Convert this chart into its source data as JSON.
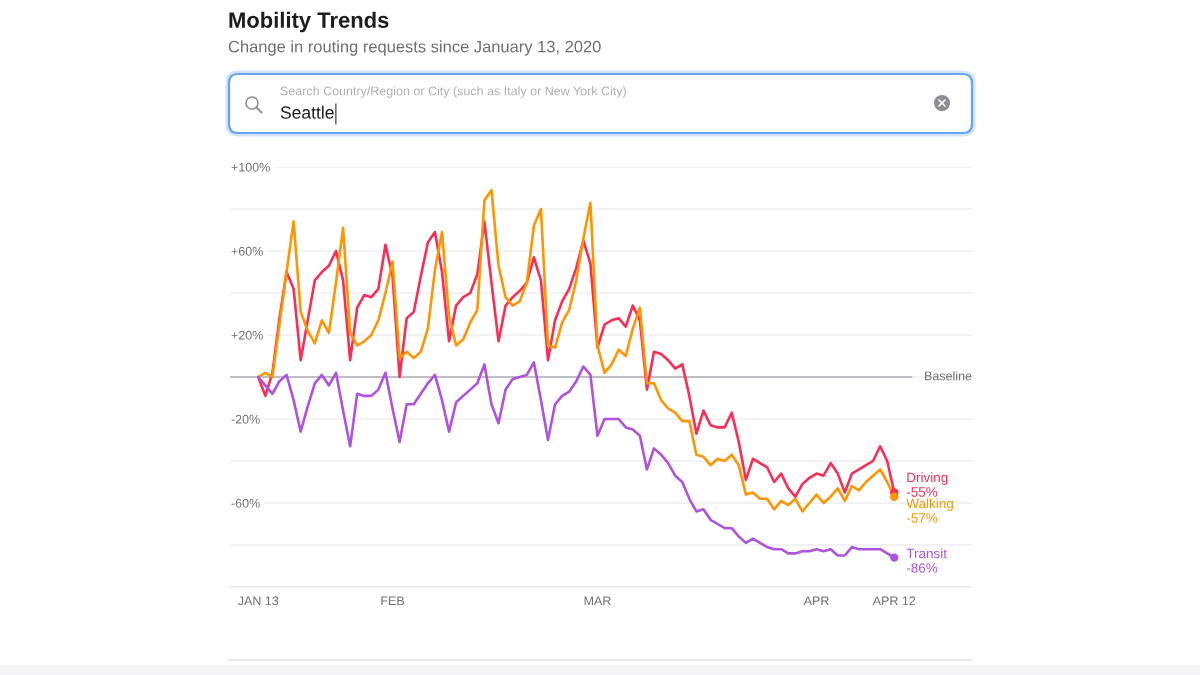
{
  "chart_data": {
    "type": "line",
    "title": "Mobility Trends",
    "subtitle": "Change in routing requests since January 13, 2020",
    "annotations": [
      "Search Country/Region or City (such as Italy or New York City)",
      "Seattle"
    ],
    "x": [
      "2020-01-13",
      "2020-01-14",
      "2020-01-15",
      "2020-01-16",
      "2020-01-17",
      "2020-01-18",
      "2020-01-19",
      "2020-01-20",
      "2020-01-21",
      "2020-01-22",
      "2020-01-23",
      "2020-01-24",
      "2020-01-25",
      "2020-01-26",
      "2020-01-27",
      "2020-01-28",
      "2020-01-29",
      "2020-01-30",
      "2020-01-31",
      "2020-02-01",
      "2020-02-02",
      "2020-02-03",
      "2020-02-04",
      "2020-02-05",
      "2020-02-06",
      "2020-02-07",
      "2020-02-08",
      "2020-02-09",
      "2020-02-10",
      "2020-02-11",
      "2020-02-12",
      "2020-02-13",
      "2020-02-14",
      "2020-02-15",
      "2020-02-16",
      "2020-02-17",
      "2020-02-18",
      "2020-02-19",
      "2020-02-20",
      "2020-02-21",
      "2020-02-22",
      "2020-02-23",
      "2020-02-24",
      "2020-02-25",
      "2020-02-26",
      "2020-02-27",
      "2020-02-28",
      "2020-02-29",
      "2020-03-01",
      "2020-03-02",
      "2020-03-03",
      "2020-03-04",
      "2020-03-05",
      "2020-03-06",
      "2020-03-07",
      "2020-03-08",
      "2020-03-09",
      "2020-03-10",
      "2020-03-11",
      "2020-03-12",
      "2020-03-13",
      "2020-03-14",
      "2020-03-15",
      "2020-03-16",
      "2020-03-17",
      "2020-03-18",
      "2020-03-19",
      "2020-03-20",
      "2020-03-21",
      "2020-03-22",
      "2020-03-23",
      "2020-03-24",
      "2020-03-25",
      "2020-03-26",
      "2020-03-27",
      "2020-03-28",
      "2020-03-29",
      "2020-03-30",
      "2020-03-31",
      "2020-04-01",
      "2020-04-02",
      "2020-04-03",
      "2020-04-04",
      "2020-04-05",
      "2020-04-06",
      "2020-04-07",
      "2020-04-08",
      "2020-04-09",
      "2020-04-10",
      "2020-04-11",
      "2020-04-12"
    ],
    "series": [
      {
        "name": "Driving",
        "color": "#fa2d55",
        "values": [
          0,
          -9,
          2,
          28,
          50,
          42,
          8,
          27,
          46,
          50,
          53,
          60,
          46,
          8,
          33,
          39,
          38,
          42,
          63,
          48,
          0,
          28,
          31,
          48,
          64,
          69,
          50,
          17,
          34,
          38,
          40,
          49,
          74,
          45,
          17,
          34,
          38,
          41,
          45,
          57,
          46,
          8,
          27,
          36,
          42,
          52,
          65,
          54,
          14,
          25,
          27,
          28,
          24,
          34,
          27,
          -6,
          12,
          11,
          8,
          4,
          6,
          -9,
          -27,
          -16,
          -23,
          -24,
          -24,
          -17,
          -31,
          -49,
          -39,
          -41,
          -43,
          -50,
          -46,
          -53,
          -57,
          -51,
          -48,
          -46,
          -47,
          -41,
          -46,
          -55,
          -46,
          -44,
          -42,
          -40,
          -33,
          -40,
          -55
        ],
        "value_labels": [
          null,
          null,
          null,
          null,
          null,
          null,
          null,
          null,
          null,
          null,
          null,
          null,
          null,
          null,
          null,
          null,
          null,
          null,
          null,
          null,
          null,
          null,
          null,
          null,
          null,
          null,
          null,
          null,
          null,
          null,
          null,
          null,
          null,
          null,
          null,
          null,
          null,
          null,
          null,
          null,
          null,
          null,
          null,
          null,
          null,
          null,
          null,
          null,
          null,
          null,
          null,
          null,
          null,
          null,
          null,
          null,
          null,
          null,
          null,
          null,
          null,
          null,
          null,
          null,
          null,
          null,
          null,
          null,
          null,
          null,
          null,
          null,
          null,
          null,
          null,
          null,
          null,
          null,
          null,
          null,
          null,
          null,
          null,
          null,
          null,
          null,
          null,
          null,
          null,
          null,
          "-55%"
        ]
      },
      {
        "name": "Walking",
        "color": "#ff9500",
        "values": [
          0,
          2,
          0,
          25,
          50,
          74,
          31,
          22,
          16,
          27,
          21,
          45,
          71,
          21,
          15,
          17,
          20,
          27,
          40,
          55,
          9,
          12,
          9,
          12,
          23,
          51,
          69,
          29,
          15,
          18,
          26,
          32,
          84,
          89,
          53,
          38,
          34,
          36,
          45,
          72,
          80,
          15,
          14,
          26,
          32,
          46,
          66,
          83,
          15,
          2,
          6,
          13,
          10,
          23,
          33,
          -3,
          -3,
          -11,
          -15,
          -17,
          -21,
          -21,
          -37,
          -38,
          -42,
          -39,
          -40,
          -37,
          -42,
          -56,
          -55,
          -58,
          -58,
          -63,
          -59,
          -61,
          -58,
          -64,
          -60,
          -56,
          -60,
          -57,
          -53,
          -59,
          -52,
          -54,
          -50,
          -47,
          -44,
          -50,
          -57
        ],
        "value_labels": [
          null,
          null,
          null,
          null,
          null,
          null,
          null,
          null,
          null,
          null,
          null,
          null,
          null,
          null,
          null,
          null,
          null,
          null,
          null,
          null,
          null,
          null,
          null,
          null,
          null,
          null,
          null,
          null,
          null,
          null,
          null,
          null,
          null,
          null,
          null,
          null,
          null,
          null,
          null,
          null,
          null,
          null,
          null,
          null,
          null,
          null,
          null,
          null,
          null,
          null,
          null,
          null,
          null,
          null,
          null,
          null,
          null,
          null,
          null,
          null,
          null,
          null,
          null,
          null,
          null,
          null,
          null,
          null,
          null,
          null,
          null,
          null,
          null,
          null,
          null,
          null,
          null,
          null,
          null,
          null,
          null,
          null,
          null,
          null,
          null,
          null,
          null,
          null,
          null,
          null,
          "-57%"
        ]
      },
      {
        "name": "Transit",
        "color": "#af52de",
        "values": [
          0,
          -4,
          -8,
          -2,
          1,
          -11,
          -26,
          -14,
          -3,
          1,
          -4,
          2,
          -16,
          -33,
          -8,
          -9,
          -9,
          -6,
          2,
          -15,
          -31,
          -13,
          -13,
          -8,
          -3,
          1,
          -11,
          -26,
          -12,
          -9,
          -6,
          -3,
          6,
          -13,
          -22,
          -6,
          -1,
          0,
          1,
          7,
          -11,
          -30,
          -13,
          -9,
          -7,
          -2,
          5,
          1,
          -28,
          -20,
          -20,
          -20,
          -24,
          -25,
          -28,
          -44,
          -34,
          -37,
          -41,
          -47,
          -50,
          -58,
          -64,
          -63,
          -68,
          -70,
          -72,
          -72,
          -76,
          -79,
          -77,
          -79,
          -81,
          -82,
          -82,
          -84,
          -84,
          -83,
          -83,
          -82,
          -83,
          -82,
          -85,
          -85,
          -81,
          -82,
          -82,
          -82,
          -82,
          -84,
          -86
        ],
        "value_labels": [
          null,
          null,
          null,
          null,
          null,
          null,
          null,
          null,
          null,
          null,
          null,
          null,
          null,
          null,
          null,
          null,
          null,
          null,
          null,
          null,
          null,
          null,
          null,
          null,
          null,
          null,
          null,
          null,
          null,
          null,
          null,
          null,
          null,
          null,
          null,
          null,
          null,
          null,
          null,
          null,
          null,
          null,
          null,
          null,
          null,
          null,
          null,
          null,
          null,
          null,
          null,
          null,
          null,
          null,
          null,
          null,
          null,
          null,
          null,
          null,
          null,
          null,
          null,
          null,
          null,
          null,
          null,
          null,
          null,
          null,
          null,
          null,
          null,
          null,
          null,
          null,
          null,
          null,
          null,
          null,
          null,
          null,
          null,
          null,
          null,
          null,
          null,
          null,
          null,
          null,
          "-86%"
        ]
      }
    ],
    "xlim": [
      "2020-01-09",
      "2020-04-23"
    ],
    "xticks": [
      {
        "value": "2020-01-13",
        "label": "JAN 13"
      },
      {
        "value": "2020-02-01",
        "label": "FEB"
      },
      {
        "value": "2020-03-01",
        "label": "MAR"
      },
      {
        "value": "2020-04-01",
        "label": "APR"
      },
      {
        "value": "2020-04-12",
        "label": "APR 12"
      }
    ],
    "ylim": [
      -100,
      100
    ],
    "yticks": [
      {
        "value": 100,
        "label": "+100%"
      },
      {
        "value": 80,
        "label": null
      },
      {
        "value": 60,
        "label": "+60%"
      },
      {
        "value": 40,
        "label": null
      },
      {
        "value": 20,
        "label": "+20%"
      },
      {
        "value": 0,
        "label": null
      },
      {
        "value": -20,
        "label": "-20%"
      },
      {
        "value": -40,
        "label": null
      },
      {
        "value": -60,
        "label": "-60%"
      },
      {
        "value": -80,
        "label": null
      },
      {
        "value": -100,
        "label": null
      }
    ],
    "grid": "y",
    "line_style": "solid",
    "ref_lines": [
      {
        "axis": "y",
        "value": 0,
        "label": "Baseline",
        "color": "#8e8e93"
      }
    ]
  }
}
